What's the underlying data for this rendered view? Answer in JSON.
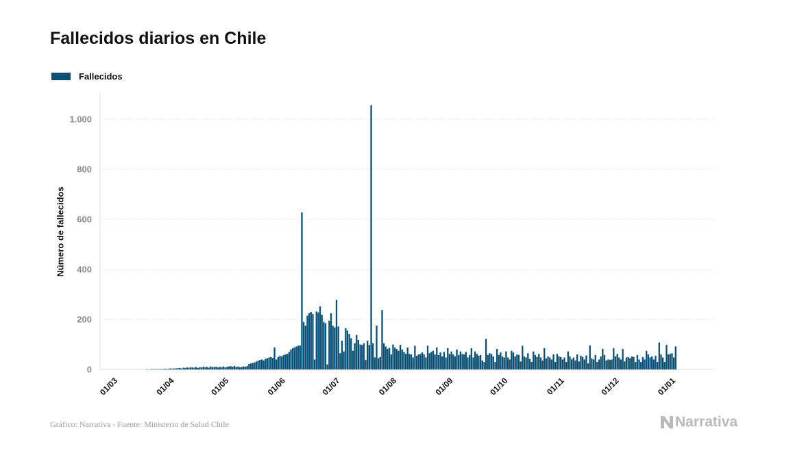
{
  "title": "Fallecidos diarios en Chile",
  "legend": {
    "label": "Fallecidos",
    "color": "#0b4f72"
  },
  "source": "Gráfico: Narrativa - Fuente: Ministerio de Salud Chile",
  "brand": {
    "name": "Narrativa",
    "icon": "narrativa-logo-icon"
  },
  "colors": {
    "bar": "#0b4f72",
    "grid": "#d9d9d9",
    "tick": "#8a8a8a"
  },
  "chart_data": {
    "type": "bar",
    "title": "Fallecidos diarios en Chile",
    "xlabel": "",
    "ylabel": "Número de fallecidos",
    "ylim": [
      0,
      1100
    ],
    "yticks": [
      0,
      200,
      400,
      600,
      800,
      1000
    ],
    "ytick_labels": [
      "0",
      "200",
      "400",
      "600",
      "800",
      "1.000"
    ],
    "grid": true,
    "legend_position": "top-left",
    "x_start": "2020-03-01",
    "x_step": "1 day",
    "xticks": [
      {
        "label": "01/03",
        "index": 0
      },
      {
        "label": "01/04",
        "index": 31
      },
      {
        "label": "01/05",
        "index": 61
      },
      {
        "label": "01/06",
        "index": 92
      },
      {
        "label": "01/07",
        "index": 122
      },
      {
        "label": "01/08",
        "index": 153
      },
      {
        "label": "01/09",
        "index": 184
      },
      {
        "label": "01/10",
        "index": 214
      },
      {
        "label": "01/11",
        "index": 245
      },
      {
        "label": "01/12",
        "index": 275
      },
      {
        "label": "01/01",
        "index": 306
      }
    ],
    "series": [
      {
        "name": "Fallecidos",
        "values": [
          0,
          0,
          0,
          0,
          0,
          0,
          0,
          0,
          0,
          0,
          0,
          0,
          0,
          0,
          0,
          0,
          0,
          0,
          0,
          0,
          1,
          0,
          1,
          1,
          1,
          1,
          1,
          1,
          2,
          1,
          3,
          2,
          3,
          4,
          3,
          4,
          4,
          5,
          6,
          4,
          7,
          6,
          8,
          7,
          9,
          8,
          7,
          10,
          6,
          9,
          8,
          11,
          9,
          10,
          7,
          12,
          9,
          10,
          11,
          8,
          10,
          9,
          12,
          8,
          11,
          12,
          13,
          11,
          14,
          10,
          12,
          9,
          10,
          12,
          11,
          14,
          22,
          24,
          26,
          28,
          32,
          35,
          38,
          40,
          36,
          42,
          45,
          48,
          50,
          46,
          88,
          40,
          50,
          55,
          52,
          58,
          60,
          62,
          70,
          80,
          85,
          88,
          92,
          95,
          96,
          628,
          190,
          175,
          215,
          225,
          230,
          222,
          40,
          232,
          228,
          252,
          218,
          190,
          185,
          20,
          195,
          225,
          175,
          168,
          278,
          172,
          65,
          115,
          72,
          165,
          155,
          142,
          125,
          75,
          105,
          138,
          118,
          100,
          98,
          105,
          38,
          115,
          98,
          1057,
          105,
          48,
          175,
          45,
          50,
          238,
          105,
          92,
          82,
          86,
          60,
          100,
          88,
          82,
          75,
          98,
          80,
          70,
          63,
          88,
          62,
          60,
          48,
          95,
          55,
          60,
          62,
          68,
          60,
          48,
          95,
          65,
          70,
          75,
          60,
          88,
          58,
          68,
          52,
          70,
          48,
          85,
          62,
          72,
          60,
          52,
          80,
          58,
          72,
          62,
          60,
          70,
          48,
          58,
          85,
          48,
          72,
          62,
          55,
          58,
          36,
          30,
          122,
          58,
          65,
          62,
          52,
          30,
          82,
          58,
          68,
          52,
          48,
          72,
          48,
          40,
          75,
          68,
          52,
          60,
          58,
          32,
          95,
          52,
          48,
          65,
          42,
          30,
          72,
          58,
          50,
          62,
          48,
          36,
          85,
          44,
          52,
          48,
          40,
          60,
          30,
          62,
          52,
          50,
          40,
          48,
          30,
          72,
          52,
          40,
          48,
          36,
          60,
          32,
          55,
          50,
          40,
          56,
          24,
          96,
          44,
          40,
          58,
          30,
          40,
          52,
          82,
          58,
          36,
          40,
          38,
          40,
          85,
          52,
          62,
          48,
          40,
          82,
          32,
          48,
          50,
          45,
          52,
          50,
          30,
          58,
          40,
          30,
          50,
          40,
          75,
          60,
          48,
          52,
          40,
          55,
          30,
          108,
          60,
          48,
          30,
          98,
          60,
          62,
          65,
          48,
          92
        ]
      }
    ]
  }
}
